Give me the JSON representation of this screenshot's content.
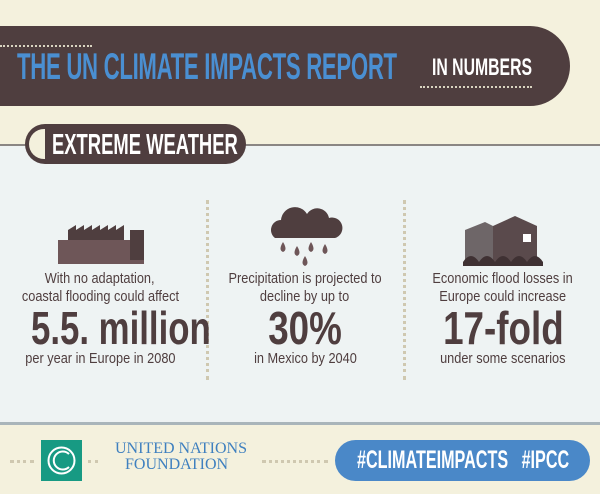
{
  "header": {
    "title": "THE UN CLIMATE IMPACTS REPORT",
    "subtitle": "IN NUMBERS"
  },
  "section": {
    "label": "EXTREME WEATHER"
  },
  "stats": [
    {
      "icon": "factory-flood-icon",
      "line1": "With no adaptation,",
      "line2": "coastal flooding could affect",
      "value": "5.5. million",
      "line3": "per year in Europe in 2080"
    },
    {
      "icon": "rain-cloud-icon",
      "line1": "Precipitation is projected to",
      "line2": "decline by up to",
      "value": "30%",
      "line3": "in Mexico by 2040"
    },
    {
      "icon": "flooded-house-icon",
      "line1": "Economic flood losses in",
      "line2": "Europe could increase",
      "value": "17-fold",
      "line3": "under some scenarios"
    }
  ],
  "footer": {
    "logo2_line1": "UNITED NATIONS",
    "logo2_line2": "FOUNDATION",
    "hashtags": "#CLIMATEIMPACTS   #IPCC"
  },
  "colors": {
    "dark": "#4f3e3f",
    "blue": "#4a8fd2",
    "cream": "#f4f1dd",
    "green": "#179a83"
  }
}
